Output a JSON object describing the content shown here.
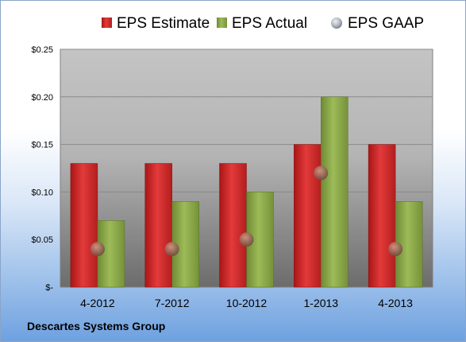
{
  "company": "Descartes Systems Group",
  "colors": {
    "estimate": "#d42a2a",
    "actual": "#8fab4c",
    "gaap": "#a9aeb6",
    "plot_bg_top": "#c0c0c0",
    "plot_bg_bottom": "#707070"
  },
  "chart_data": {
    "type": "bar",
    "categories": [
      "4-2012",
      "7-2012",
      "10-2012",
      "1-2013",
      "4-2013"
    ],
    "series": [
      {
        "name": "EPS Estimate",
        "kind": "bar",
        "values": [
          0.13,
          0.13,
          0.13,
          0.15,
          0.15
        ]
      },
      {
        "name": "EPS Actual",
        "kind": "bar",
        "values": [
          0.07,
          0.09,
          0.1,
          0.2,
          0.09
        ]
      },
      {
        "name": "EPS GAAP",
        "kind": "marker",
        "values": [
          0.04,
          0.04,
          0.05,
          0.12,
          0.04
        ]
      }
    ],
    "yticks": [
      {
        "value": 0.25,
        "label": "$0.25"
      },
      {
        "value": 0.2,
        "label": "$0.20"
      },
      {
        "value": 0.15,
        "label": "$0.15"
      },
      {
        "value": 0.1,
        "label": "$0.10"
      },
      {
        "value": 0.05,
        "label": "$0.05"
      },
      {
        "value": 0,
        "label": "$-"
      }
    ],
    "ylim": [
      0,
      0.25
    ],
    "grid": true,
    "legend_position": "top"
  }
}
